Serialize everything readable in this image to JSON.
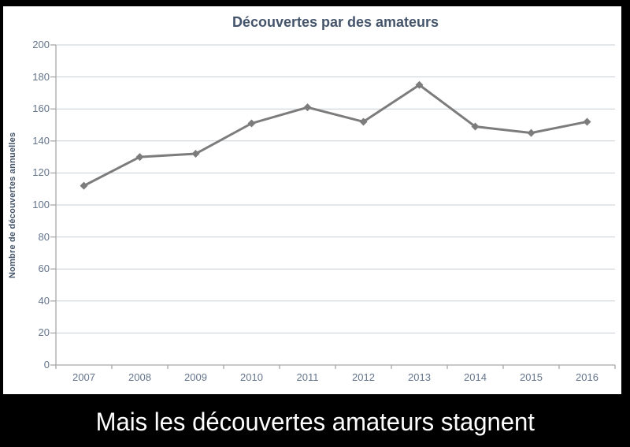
{
  "caption": {
    "text": "Mais les découvertes amateurs stagnent"
  },
  "colors": {
    "slide_background": "#000000",
    "panel_background": "#ffffff",
    "title_text": "#44546a",
    "axis_label_text": "#64748b",
    "y_axis_title_text": "#44546a",
    "series_line": "#7c7c7c",
    "gridline": "#c9cfd6",
    "axis_line": "#a8a8a8",
    "caption_text": "#ffffff"
  },
  "chart_data": {
    "type": "line",
    "title": "Découvertes par des amateurs",
    "xlabel": "",
    "ylabel": "Nombre de découvertes annuelles",
    "categories": [
      "2007",
      "2008",
      "2009",
      "2010",
      "2011",
      "2012",
      "2013",
      "2014",
      "2015",
      "2016"
    ],
    "values": [
      112,
      130,
      132,
      151,
      161,
      152,
      175,
      149,
      145,
      152
    ],
    "ylim": [
      0,
      200
    ],
    "ytick_step": 20,
    "yticks": [
      0,
      20,
      40,
      60,
      80,
      100,
      120,
      140,
      160,
      180,
      200
    ],
    "grid": "horizontal",
    "legend": false,
    "marker": "diamond"
  }
}
